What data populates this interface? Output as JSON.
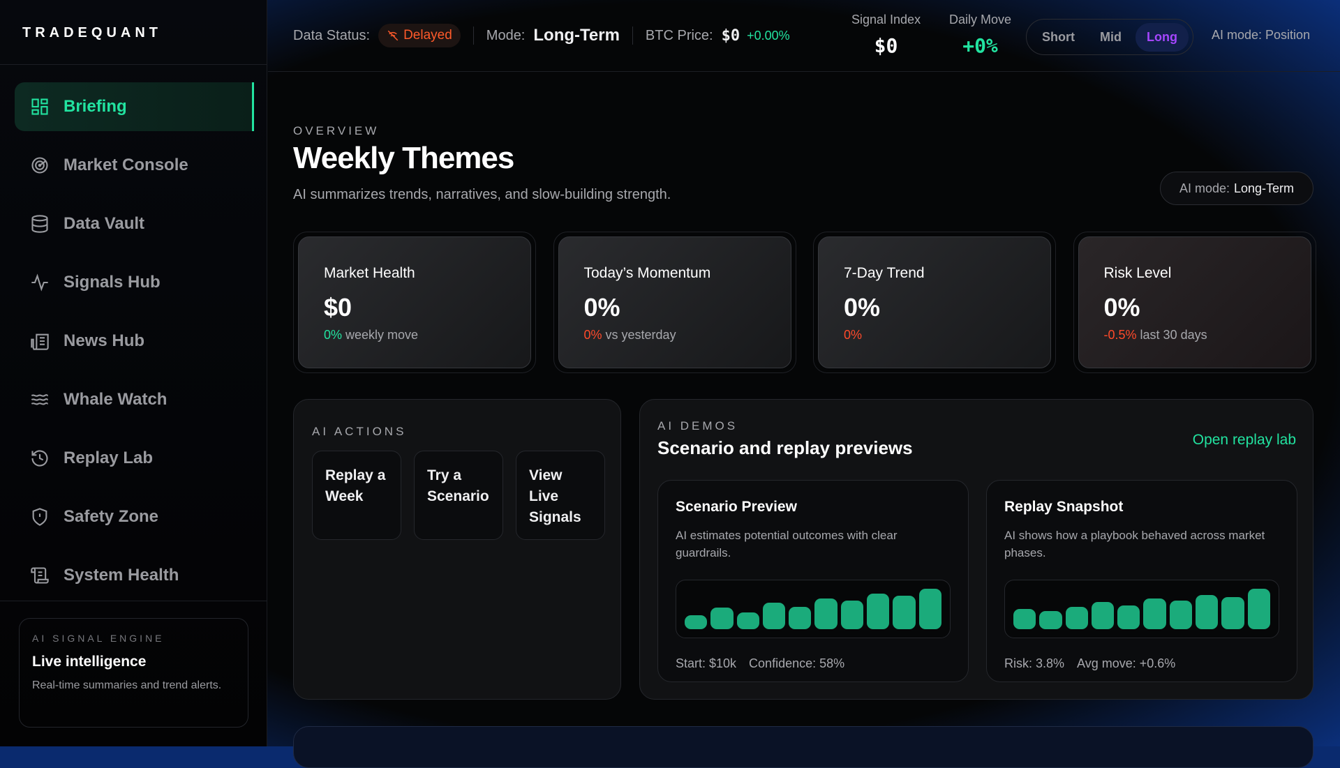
{
  "app": {
    "logo": "TRADEQUANT"
  },
  "sidebar": {
    "items": [
      {
        "label": "Briefing",
        "icon": "grid-icon",
        "active": true
      },
      {
        "label": "Market Console",
        "icon": "radar-icon"
      },
      {
        "label": "Data Vault",
        "icon": "database-icon"
      },
      {
        "label": "Signals Hub",
        "icon": "pulse-icon"
      },
      {
        "label": "News Hub",
        "icon": "newspaper-icon"
      },
      {
        "label": "Whale Watch",
        "icon": "waves-icon"
      },
      {
        "label": "Replay Lab",
        "icon": "history-icon"
      },
      {
        "label": "Safety Zone",
        "icon": "shield-alert-icon"
      },
      {
        "label": "System Health",
        "icon": "scroll-icon"
      }
    ],
    "engine": {
      "kicker": "AI SIGNAL ENGINE",
      "title": "Live intelligence",
      "desc": "Real-time summaries and trend alerts."
    }
  },
  "topbar": {
    "data_status_label": "Data Status:",
    "data_status": "Delayed",
    "mode_label": "Mode:",
    "mode": "Long-Term",
    "btc_label": "BTC Price:",
    "btc_price": "$0",
    "btc_change": "+0.00%",
    "signal_index_label": "Signal Index",
    "signal_index": "$0",
    "daily_move_label": "Daily Move",
    "daily_move": "+0%",
    "horizons": [
      "Short",
      "Mid",
      "Long"
    ],
    "horizon_selected": "Long",
    "ai_mode": "AI mode: Position"
  },
  "colors": {
    "accent": "#22e3a0",
    "negative": "#ff4a2a",
    "selected": "#a546ff",
    "bar": "#1bab7b"
  },
  "overview": {
    "kicker": "OVERVIEW",
    "title": "Weekly Themes",
    "subtitle": "AI summarizes trends, narratives, and slow-building strength.",
    "ai_mode_label": "AI mode:",
    "ai_mode_value": "Long-Term"
  },
  "stats": [
    {
      "label": "Market Health",
      "value": "$0",
      "delta": "0%",
      "note": "weekly move",
      "tone": "positive"
    },
    {
      "label": "Today’s Momentum",
      "value": "0%",
      "delta": "0%",
      "note": "vs yesterday",
      "tone": "negative"
    },
    {
      "label": "7-Day Trend",
      "value": "0%",
      "delta": "0%",
      "note": "",
      "tone": "negative"
    },
    {
      "label": "Risk Level",
      "value": "0%",
      "delta": "-0.5%",
      "note": "last 30 days",
      "tone": "negative"
    }
  ],
  "actions": {
    "kicker": "AI ACTIONS",
    "buttons": [
      "Replay a Week",
      "Try a Scenario",
      "View Live Signals"
    ]
  },
  "demos": {
    "kicker": "AI DEMOS",
    "title": "Scenario and replay previews",
    "link": "Open replay lab",
    "cards": [
      {
        "title": "Scenario Preview",
        "desc": "AI estimates potential outcomes with clear guardrails.",
        "bars": [
          35,
          53,
          41,
          65,
          56,
          76,
          71,
          88,
          82,
          100
        ],
        "footer": [
          "Start: $10k",
          "Confidence: 58%"
        ]
      },
      {
        "title": "Replay Snapshot",
        "desc": "AI shows how a playbook behaved across market phases.",
        "bars": [
          50,
          44,
          56,
          68,
          59,
          76,
          71,
          85,
          79,
          100
        ],
        "footer": [
          "Risk: 3.8%",
          "Avg move: +0.6%"
        ]
      }
    ]
  }
}
